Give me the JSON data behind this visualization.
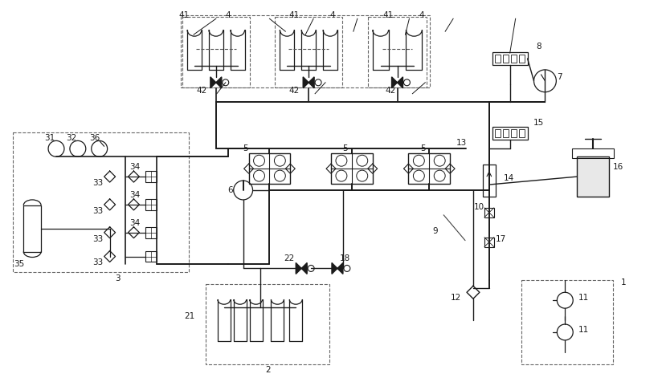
{
  "bg_color": "#ffffff",
  "line_color": "#000000",
  "fig_width": 8.24,
  "fig_height": 4.76
}
